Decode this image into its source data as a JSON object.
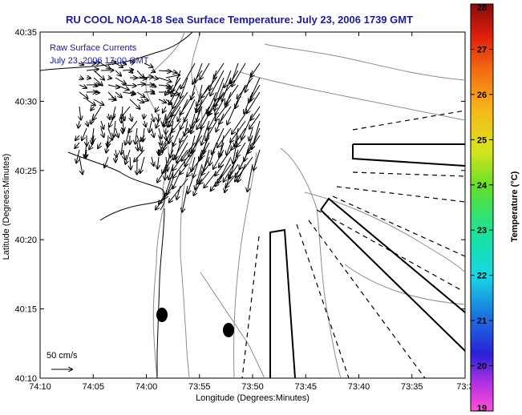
{
  "title": "RU COOL  NOAA-18  Sea Surface Temperature:  July 23, 2006 1739 GMT",
  "annotation": {
    "line1": "Raw Surface Currents",
    "line2": "July 23, 2006 17:00 GMT"
  },
  "scale": {
    "label": "50 cm/s"
  },
  "axes": {
    "xlabel": "Longitude (Degrees:Minutes)",
    "ylabel": "Latitude (Degrees:Minutes)",
    "xticks": [
      "74:10",
      "74:05",
      "74:00",
      "73:55",
      "73:50",
      "73:45",
      "73:40",
      "73:35",
      "73:3"
    ],
    "yticks": [
      "40:35",
      "40:30",
      "40:25",
      "40:20",
      "40:15",
      "40:10"
    ]
  },
  "colorbar": {
    "label": "Temperature (°C)",
    "ticks": [
      "28",
      "27",
      "26",
      "25",
      "24",
      "23",
      "22",
      "21",
      "20",
      "19"
    ],
    "min": 19,
    "max": 28
  },
  "colors": {
    "title": "#1a1aa6",
    "contour": "#8c8c8c",
    "outline": "#000000"
  }
}
